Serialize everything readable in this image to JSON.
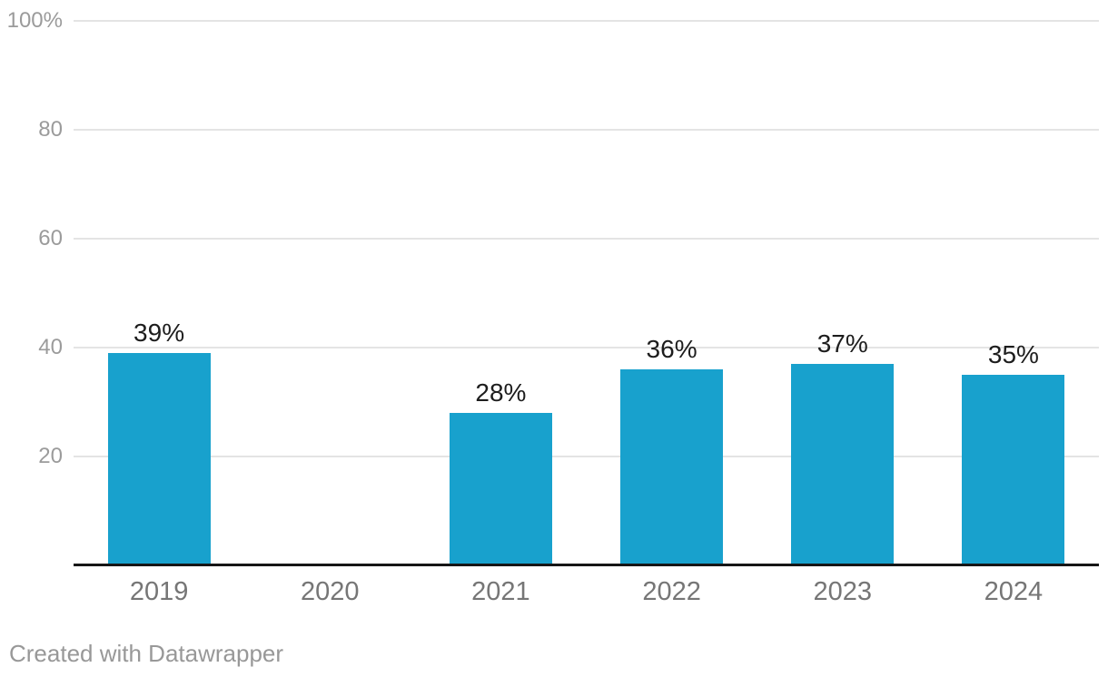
{
  "chart_data": {
    "type": "bar",
    "title": "",
    "xlabel": "",
    "ylabel": "",
    "categories": [
      "2019",
      "2020",
      "2021",
      "2022",
      "2023",
      "2024"
    ],
    "values": [
      39,
      null,
      28,
      36,
      37,
      35
    ],
    "value_labels": [
      "39%",
      null,
      "28%",
      "36%",
      "37%",
      "35%"
    ],
    "ylim": [
      0,
      100
    ],
    "yticks": [
      {
        "value": 100,
        "label": "100%"
      },
      {
        "value": 80,
        "label": "80"
      },
      {
        "value": 60,
        "label": "60"
      },
      {
        "value": 40,
        "label": "40"
      },
      {
        "value": 20,
        "label": "20"
      }
    ],
    "grid": true,
    "legend": "none",
    "bar_color": "#18a1cd"
  },
  "footer": {
    "credit": "Created with Datawrapper"
  },
  "colors": {
    "bar": "#18a1cd",
    "gridline": "#e4e4e4",
    "axis_line": "#161616",
    "ytick_label": "#9b9b9b",
    "xtick_label": "#767676",
    "value_label": "#1d1d1d",
    "footer_text": "#989898",
    "background": "#ffffff"
  }
}
